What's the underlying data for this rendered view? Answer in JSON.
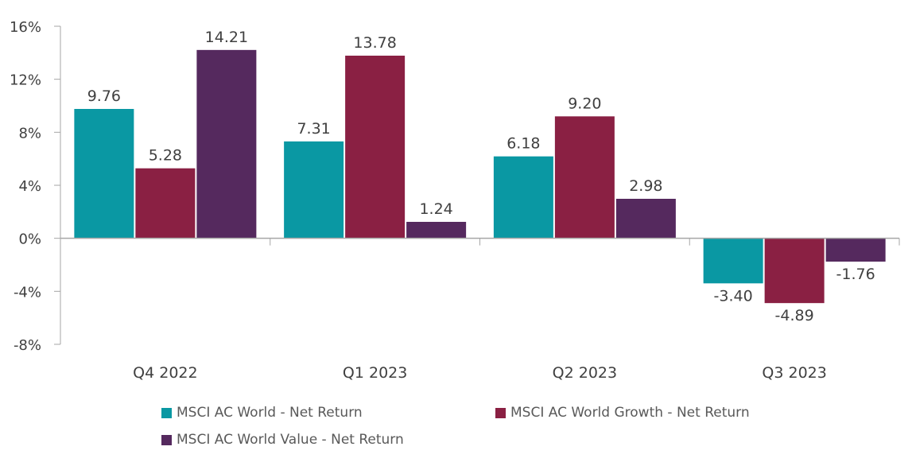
{
  "chart_data": {
    "type": "bar",
    "categories": [
      "Q4 2022",
      "Q1 2023",
      "Q2 2023",
      "Q3 2023"
    ],
    "series": [
      {
        "name": "MSCI AC World - Net Return",
        "color": "#0A98A3",
        "values": [
          9.76,
          7.31,
          6.18,
          -3.4
        ]
      },
      {
        "name": "MSCI AC World Growth - Net Return",
        "color": "#8A2043",
        "values": [
          5.28,
          13.78,
          9.2,
          -4.89
        ]
      },
      {
        "name": "MSCI AC World Value - Net Return",
        "color": "#55295E",
        "values": [
          14.21,
          1.24,
          2.98,
          -1.76
        ]
      }
    ],
    "data_labels": [
      [
        "9.76",
        "7.31",
        "6.18",
        "-3.40"
      ],
      [
        "5.28",
        "13.78",
        "9.20",
        "-4.89"
      ],
      [
        "14.21",
        "1.24",
        "2.98",
        "-1.76"
      ]
    ],
    "yticks": [
      "16%",
      "12%",
      "8%",
      "4%",
      "0%",
      "-4%",
      "-8%"
    ],
    "ytick_values": [
      16,
      12,
      8,
      4,
      0,
      -4,
      -8
    ],
    "ylim": [
      -8,
      16
    ],
    "grid": false,
    "legend_placement": "bottom"
  }
}
